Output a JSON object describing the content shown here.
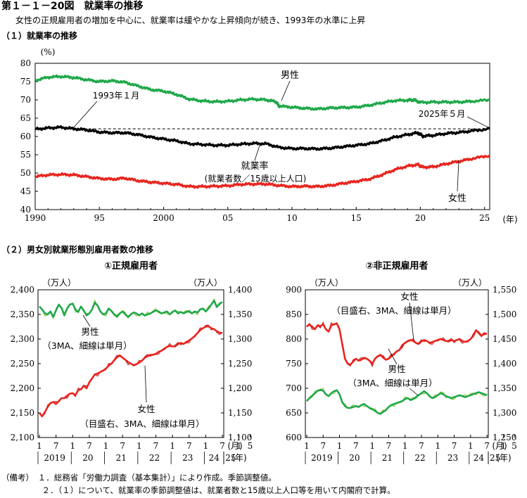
{
  "page": {
    "title": "第１－１－20図　就業率の推移",
    "subtitle": "女性の正規雇用者の増加を中心に、就業率は緩やかな上昇傾向が続き、1993年の水準に上昇",
    "section1": "（１）就業率の推移",
    "section2": "（２）男女別就業形態別雇用者数の推移",
    "notes": [
      "（備考）　１．総務省「労働力調査（基本集計）」により作成。季節調整値。",
      "　　　　　２．（１）について、就業率の季節調整値は、就業者数と15歳以上人口等を用いて内閣府で計算。"
    ]
  },
  "colors": {
    "male": "#1fa84a",
    "male_thin": "#8dc63f",
    "rate": "#000000",
    "female": "#e8251f",
    "female_thin": "#c1272d"
  },
  "chart_data": [
    {
      "type": "line",
      "title": "（１）就業率の推移",
      "ylabel": "(%)",
      "xlabel": "(年)",
      "ylim": [
        40,
        80
      ],
      "yticks": [
        40,
        45,
        50,
        55,
        60,
        65,
        70,
        75,
        80
      ],
      "xlim": [
        1990,
        2025.4
      ],
      "xticks": [
        {
          "x": 1990,
          "label": "1990"
        },
        {
          "x": 1995,
          "label": "95"
        },
        {
          "x": 2000,
          "label": "2000"
        },
        {
          "x": 2005,
          "label": "05"
        },
        {
          "x": 2010,
          "label": "10"
        },
        {
          "x": 2015,
          "label": "15"
        },
        {
          "x": 2020,
          "label": "20"
        },
        {
          "x": 2025,
          "label": "25"
        }
      ],
      "reference_line": {
        "y": 62.1,
        "style": "dashed"
      },
      "annotations": [
        "1993年１月",
        "2025年５月",
        "男性",
        "就業率",
        "(就業者数／15歳以上人口)",
        "女性"
      ],
      "series": [
        {
          "name": "男性",
          "color": "#1fa84a",
          "x": [
            1990,
            1991,
            1992,
            1993,
            1994,
            1995,
            1996,
            1997,
            1998,
            1999,
            2000,
            2001,
            2002,
            2003,
            2004,
            2005,
            2006,
            2007,
            2008,
            2008.75,
            2009,
            2010,
            2011,
            2012,
            2013,
            2014,
            2015,
            2016,
            2017,
            2018,
            2019,
            2019.5,
            2020,
            2021,
            2022,
            2023,
            2024,
            2025.4
          ],
          "y": [
            75.3,
            76.2,
            76.4,
            76.1,
            75.5,
            75.0,
            75.2,
            74.8,
            73.8,
            72.8,
            72.4,
            71.5,
            70.2,
            69.7,
            69.5,
            69.6,
            70.0,
            70.2,
            70.0,
            69.5,
            68.3,
            68.0,
            67.7,
            67.5,
            67.8,
            67.9,
            68.0,
            68.5,
            69.2,
            69.8,
            69.9,
            70.0,
            69.3,
            69.4,
            69.4,
            69.4,
            69.6,
            70.0
          ]
        },
        {
          "name": "就業率",
          "color": "#000000",
          "x": [
            1990,
            1991,
            1992,
            1993,
            1994,
            1995,
            1996,
            1997,
            1998,
            1999,
            2000,
            2001,
            2002,
            2003,
            2004,
            2005,
            2006,
            2007,
            2008,
            2009,
            2010,
            2011,
            2012,
            2013,
            2014,
            2015,
            2016,
            2017,
            2018,
            2019,
            2019.8,
            2020.2,
            2021,
            2022,
            2023,
            2024,
            2025.4
          ],
          "y": [
            62.0,
            62.3,
            62.5,
            62.1,
            61.8,
            61.2,
            61.0,
            61.0,
            60.5,
            59.8,
            59.3,
            58.8,
            58.0,
            57.8,
            57.6,
            57.6,
            57.9,
            58.1,
            58.0,
            57.0,
            56.7,
            56.7,
            56.6,
            56.8,
            57.2,
            57.6,
            58.0,
            58.8,
            59.8,
            60.5,
            61.0,
            60.1,
            60.3,
            60.8,
            61.1,
            61.5,
            62.1
          ]
        },
        {
          "name": "女性",
          "color": "#e8251f",
          "x": [
            1990,
            1991,
            1992,
            1993,
            1994,
            1995,
            1996,
            1997,
            1998,
            1999,
            2000,
            2001,
            2002,
            2003,
            2004,
            2005,
            2006,
            2007,
            2008,
            2009,
            2010,
            2011,
            2012,
            2013,
            2014,
            2015,
            2016,
            2017,
            2018,
            2019,
            2019.8,
            2020.2,
            2021,
            2022,
            2023,
            2024,
            2025.4
          ],
          "y": [
            49.0,
            49.5,
            49.6,
            49.5,
            49.0,
            48.5,
            48.3,
            48.6,
            47.9,
            47.5,
            47.2,
            46.9,
            46.3,
            46.3,
            46.4,
            46.5,
            46.9,
            47.0,
            47.0,
            46.6,
            46.3,
            46.4,
            46.3,
            46.6,
            47.2,
            47.7,
            48.3,
            49.5,
            50.9,
            51.9,
            52.3,
            51.6,
            51.7,
            52.5,
            53.2,
            53.9,
            54.8
          ]
        }
      ]
    },
    {
      "type": "line",
      "title": "①正規雇用者",
      "y_left_label": "（万人）",
      "y_right_label": "（万人）",
      "yleft_lim": [
        2100,
        2400
      ],
      "yleft_ticks": [
        "2,100",
        "2,150",
        "2,200",
        "2,250",
        "2,300",
        "2,350",
        "2,400"
      ],
      "yright_lim": [
        1100,
        1400
      ],
      "yright_ticks": [
        "1,100",
        "1,150",
        "1,200",
        "1,250",
        "1,300",
        "1,350",
        "1,400"
      ],
      "month_ticks": [
        "1",
        "7",
        "1",
        "7",
        "1",
        "7",
        "1",
        "7",
        "1",
        "7",
        "1",
        "7",
        "1",
        "5"
      ],
      "month_unit": "(月)",
      "years": [
        "2019",
        "20",
        "21",
        "22",
        "23",
        "24",
        "25"
      ],
      "year_unit": "(年)",
      "annotations": [
        "男性",
        "（3MA、細線は単月）",
        "女性",
        "（目盛右、3MA、細線は単月）"
      ],
      "series": [
        {
          "name": "男性",
          "axis": "left",
          "color": "#1fa84a",
          "y": [
            2366,
            2360,
            2352,
            2350,
            2356,
            2345,
            2358,
            2370,
            2363,
            2348,
            2362,
            2370,
            2372,
            2360,
            2355,
            2366,
            2358,
            2348,
            2352,
            2360,
            2374,
            2368,
            2356,
            2350,
            2352,
            2362,
            2357,
            2350,
            2345,
            2352,
            2356,
            2350,
            2345,
            2350,
            2354,
            2352,
            2348,
            2352,
            2348,
            2350,
            2352,
            2355,
            2358,
            2356,
            2352,
            2354,
            2356,
            2350,
            2355,
            2358,
            2352,
            2355,
            2352,
            2355,
            2357,
            2352,
            2356,
            2354,
            2360,
            2362,
            2356,
            2362,
            2370,
            2378,
            2365,
            2372,
            2375
          ]
        },
        {
          "name": "女性",
          "axis": "right",
          "color": "#e8251f",
          "y": [
            1150,
            1143,
            1152,
            1162,
            1170,
            1172,
            1168,
            1174,
            1180,
            1180,
            1185,
            1189,
            1190,
            1186,
            1196,
            1198,
            1205,
            1200,
            1212,
            1220,
            1228,
            1230,
            1233,
            1236,
            1240,
            1246,
            1250,
            1257,
            1263,
            1267,
            1262,
            1258,
            1253,
            1250,
            1247,
            1249,
            1252,
            1256,
            1262,
            1265,
            1268,
            1268,
            1270,
            1274,
            1276,
            1280,
            1284,
            1286,
            1285,
            1285,
            1290,
            1292,
            1290,
            1294,
            1297,
            1301,
            1306,
            1312,
            1318,
            1322,
            1325,
            1326,
            1322,
            1320,
            1316,
            1313,
            1312
          ]
        }
      ]
    },
    {
      "type": "line",
      "title": "②非正規雇用者",
      "y_left_label": "（万人）",
      "y_right_label": "（万人）",
      "yleft_lim": [
        600,
        900
      ],
      "yleft_ticks": [
        "600",
        "650",
        "700",
        "750",
        "800",
        "850",
        "900"
      ],
      "yright_lim": [
        1250,
        1550
      ],
      "yright_ticks": [
        "1,250",
        "1,300",
        "1,350",
        "1,400",
        "1,450",
        "1,500",
        "1,550"
      ],
      "month_ticks": [
        "1",
        "7",
        "1",
        "7",
        "1",
        "7",
        "1",
        "7",
        "1",
        "7",
        "1",
        "7",
        "1",
        "5"
      ],
      "month_unit": "(月)",
      "years": [
        "2019",
        "20",
        "21",
        "22",
        "23",
        "24",
        "25"
      ],
      "year_unit": "(年)",
      "annotations": [
        "女性",
        "（目盛右、3MA、細線は単月）",
        "男性",
        "（3MA、細線は単月）"
      ],
      "series": [
        {
          "name": "女性",
          "axis": "right",
          "color": "#e8251f",
          "y": [
            1475,
            1480,
            1475,
            1470,
            1478,
            1476,
            1480,
            1470,
            1465,
            1478,
            1480,
            1482,
            1470,
            1440,
            1410,
            1400,
            1398,
            1404,
            1410,
            1406,
            1408,
            1412,
            1410,
            1406,
            1400,
            1410,
            1415,
            1418,
            1412,
            1408,
            1410,
            1415,
            1420,
            1425,
            1428,
            1438,
            1442,
            1446,
            1448,
            1446,
            1442,
            1440,
            1445,
            1448,
            1446,
            1442,
            1444,
            1446,
            1448,
            1450,
            1448,
            1446,
            1445,
            1448,
            1446,
            1448,
            1450,
            1446,
            1444,
            1446,
            1450,
            1456,
            1468,
            1462,
            1456,
            1462,
            1460
          ]
        },
        {
          "name": "男性",
          "axis": "left",
          "color": "#1fa84a",
          "y": [
            674,
            680,
            685,
            690,
            695,
            697,
            695,
            688,
            684,
            690,
            694,
            696,
            688,
            672,
            664,
            660,
            660,
            662,
            664,
            662,
            666,
            668,
            664,
            660,
            658,
            654,
            650,
            648,
            652,
            656,
            662,
            666,
            668,
            670,
            672,
            674,
            678,
            680,
            676,
            678,
            682,
            686,
            690,
            694,
            690,
            684,
            680,
            682,
            686,
            690,
            688,
            684,
            682,
            680,
            682,
            684,
            686,
            684,
            682,
            684,
            686,
            688,
            690,
            692,
            690,
            688,
            686
          ]
        }
      ]
    }
  ]
}
